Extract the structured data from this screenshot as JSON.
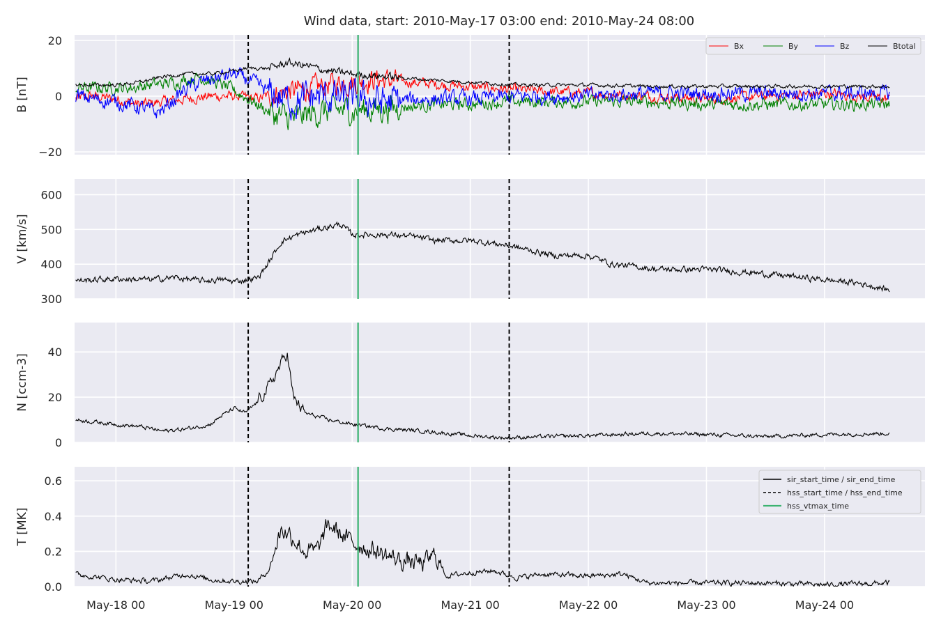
{
  "title": "Wind data, start: 2010-May-17 03:00  end: 2010-May-24 08:00",
  "colors": {
    "plot_bg": "#eaeaf2",
    "grid": "#ffffff",
    "bx": "#ff0000",
    "by": "#008000",
    "bz": "#0000ff",
    "btotal": "#000000",
    "vtmax": "#3cb371",
    "line": "#000000"
  },
  "chart_data": [
    {
      "type": "line",
      "panel": "B",
      "ylabel": "B [nT]",
      "ylim": [
        -21,
        22
      ],
      "yticks": [
        -20,
        0,
        20
      ],
      "ytick_labels": [
        "−20",
        "0",
        "20"
      ],
      "xlim": [
        -0.35,
        6.85
      ],
      "xlabel_ticks": [
        {
          "x": 0,
          "label": "May-18 00"
        },
        {
          "x": 1,
          "label": "May-19 00"
        },
        {
          "x": 2,
          "label": "May-20 00"
        },
        {
          "x": 3,
          "label": "May-21 00"
        },
        {
          "x": 4,
          "label": "May-22 00"
        },
        {
          "x": 5,
          "label": "May-23 00"
        },
        {
          "x": 6,
          "label": "May-24 00"
        }
      ],
      "legend_position": "top-right",
      "series": [
        {
          "name": "Bx",
          "color": "#ff0000",
          "noise": 1.5,
          "x": [
            -0.34,
            -0.2,
            0.0,
            0.2,
            0.4,
            0.6,
            0.8,
            1.0,
            1.2,
            1.35,
            1.5,
            1.7,
            1.9,
            2.0,
            2.2,
            2.5,
            2.8,
            3.1,
            3.5,
            4.0,
            4.5,
            5.0,
            5.5,
            6.0,
            6.3,
            6.55
          ],
          "y": [
            -1,
            0,
            -1,
            -3,
            -2,
            -1,
            0,
            0,
            -1,
            1,
            2,
            3,
            5,
            5,
            6,
            5,
            4,
            3,
            2,
            1,
            0,
            -1,
            0,
            1,
            0,
            -1
          ]
        },
        {
          "name": "By",
          "color": "#008000",
          "noise": 1.8,
          "x": [
            -0.34,
            -0.1,
            0.1,
            0.3,
            0.5,
            0.7,
            0.9,
            1.0,
            1.2,
            1.35,
            1.5,
            1.7,
            1.9,
            2.1,
            2.4,
            2.7,
            3.0,
            3.3,
            3.6,
            4.0,
            4.5,
            5.0,
            5.5,
            6.0,
            6.55
          ],
          "y": [
            3,
            3,
            3,
            4,
            5,
            7,
            4,
            2,
            -3,
            -7,
            -8,
            -6,
            -5,
            -5,
            -4,
            -3,
            -3,
            -2,
            -2,
            -2,
            -2,
            -3,
            -3,
            -3,
            -3
          ]
        },
        {
          "name": "Bz",
          "color": "#0000ff",
          "noise": 2.2,
          "x": [
            -0.34,
            -0.2,
            0.0,
            0.2,
            0.35,
            0.45,
            0.6,
            0.8,
            1.0,
            1.2,
            1.35,
            1.5,
            1.7,
            2.0,
            2.3,
            2.6,
            3.0,
            3.5,
            4.0,
            4.5,
            5.0,
            5.5,
            6.0,
            6.55
          ],
          "y": [
            0,
            -1,
            -2,
            -4,
            -6,
            -3,
            3,
            6,
            8,
            4,
            0,
            -2,
            0,
            -1,
            -2,
            -1,
            -1,
            0,
            0,
            1,
            1,
            1,
            1,
            1
          ]
        },
        {
          "name": "Btotal",
          "color": "#000000",
          "noise": 0.5,
          "x": [
            -0.34,
            -0.2,
            0.0,
            0.2,
            0.4,
            0.6,
            0.8,
            1.0,
            1.1,
            1.3,
            1.45,
            1.6,
            1.8,
            2.0,
            2.3,
            2.6,
            3.0,
            3.4,
            4.0,
            4.5,
            5.0,
            5.5,
            6.0,
            6.55
          ],
          "y": [
            4,
            4,
            4,
            5,
            7,
            8,
            8,
            9,
            10,
            10,
            12,
            11,
            9,
            8,
            7,
            6,
            5,
            4,
            4,
            3.5,
            3.5,
            3.5,
            3.5,
            3.5
          ]
        }
      ]
    },
    {
      "type": "line",
      "panel": "V",
      "ylabel": "V [km/s]",
      "ylim": [
        300,
        645
      ],
      "yticks": [
        300,
        400,
        500,
        600
      ],
      "ytick_labels": [
        "300",
        "400",
        "500",
        "600"
      ],
      "series": [
        {
          "name": "",
          "color": "#000000",
          "noise": 7,
          "x": [
            -0.34,
            0.0,
            0.3,
            0.5,
            0.7,
            0.9,
            1.0,
            1.2,
            1.3,
            1.4,
            1.5,
            1.7,
            1.9,
            2.0,
            2.3,
            2.5,
            2.7,
            3.0,
            3.3,
            3.5,
            3.7,
            4.0,
            4.2,
            4.6,
            5.0,
            5.4,
            6.0,
            6.3,
            6.55
          ],
          "y": [
            352,
            358,
            355,
            362,
            352,
            355,
            350,
            360,
            408,
            465,
            480,
            500,
            515,
            485,
            485,
            480,
            468,
            468,
            455,
            440,
            425,
            425,
            400,
            385,
            385,
            375,
            355,
            345,
            325
          ]
        }
      ]
    },
    {
      "type": "line",
      "panel": "N",
      "ylabel": "N [ccm-3]",
      "ylim": [
        0,
        53
      ],
      "yticks": [
        0,
        20,
        40
      ],
      "ytick_labels": [
        "0",
        "20",
        "40"
      ],
      "series": [
        {
          "name": "",
          "color": "#000000",
          "noise": 0.7,
          "x": [
            -0.34,
            0.0,
            0.2,
            0.4,
            0.6,
            0.8,
            0.9,
            1.0,
            1.1,
            1.2,
            1.3,
            1.4,
            1.45,
            1.5,
            1.6,
            1.8,
            2.0,
            2.3,
            2.6,
            3.0,
            3.3,
            3.6,
            4.0,
            4.5,
            5.0,
            5.5,
            6.0,
            6.55
          ],
          "y": [
            10,
            8,
            7,
            5,
            6,
            8,
            12,
            15,
            13,
            18,
            25,
            35,
            40,
            20,
            13,
            10,
            8,
            6,
            5,
            3,
            2,
            2.5,
            3,
            4,
            3.5,
            2.5,
            3.5,
            4
          ]
        }
      ]
    },
    {
      "type": "line",
      "panel": "T",
      "ylabel": "T [MK]",
      "ylim": [
        0,
        0.68
      ],
      "yticks": [
        0.0,
        0.2,
        0.4,
        0.6
      ],
      "ytick_labels": [
        "0.0",
        "0.2",
        "0.4",
        "0.6"
      ],
      "legend_position": "top-right",
      "series": [
        {
          "name": "",
          "color": "#000000",
          "noise": 0.012,
          "x": [
            -0.34,
            0.0,
            0.3,
            0.6,
            0.8,
            1.0,
            1.2,
            1.3,
            1.4,
            1.5,
            1.6,
            1.7,
            1.8,
            1.9,
            2.0,
            2.2,
            2.4,
            2.6,
            2.7,
            2.8,
            3.0,
            3.2,
            3.4,
            3.6,
            4.0,
            4.3,
            4.5,
            5.0,
            5.5,
            6.0,
            6.55
          ],
          "y": [
            0.07,
            0.04,
            0.03,
            0.07,
            0.04,
            0.03,
            0.03,
            0.1,
            0.33,
            0.28,
            0.2,
            0.2,
            0.35,
            0.3,
            0.25,
            0.2,
            0.15,
            0.13,
            0.18,
            0.06,
            0.08,
            0.09,
            0.05,
            0.07,
            0.06,
            0.07,
            0.02,
            0.02,
            0.02,
            0.01,
            0.02
          ]
        }
      ]
    }
  ],
  "events": {
    "sir_start_time": 1.12,
    "sir_end_time": 3.33,
    "hss_vtmax_time": 2.05
  },
  "legend_b": [
    "Bx",
    "By",
    "Bz",
    "Btotal"
  ],
  "legend_t": [
    "sir_start_time / sir_end_time",
    "hss_start_time / hss_end_time",
    "hss_vtmax_time"
  ]
}
